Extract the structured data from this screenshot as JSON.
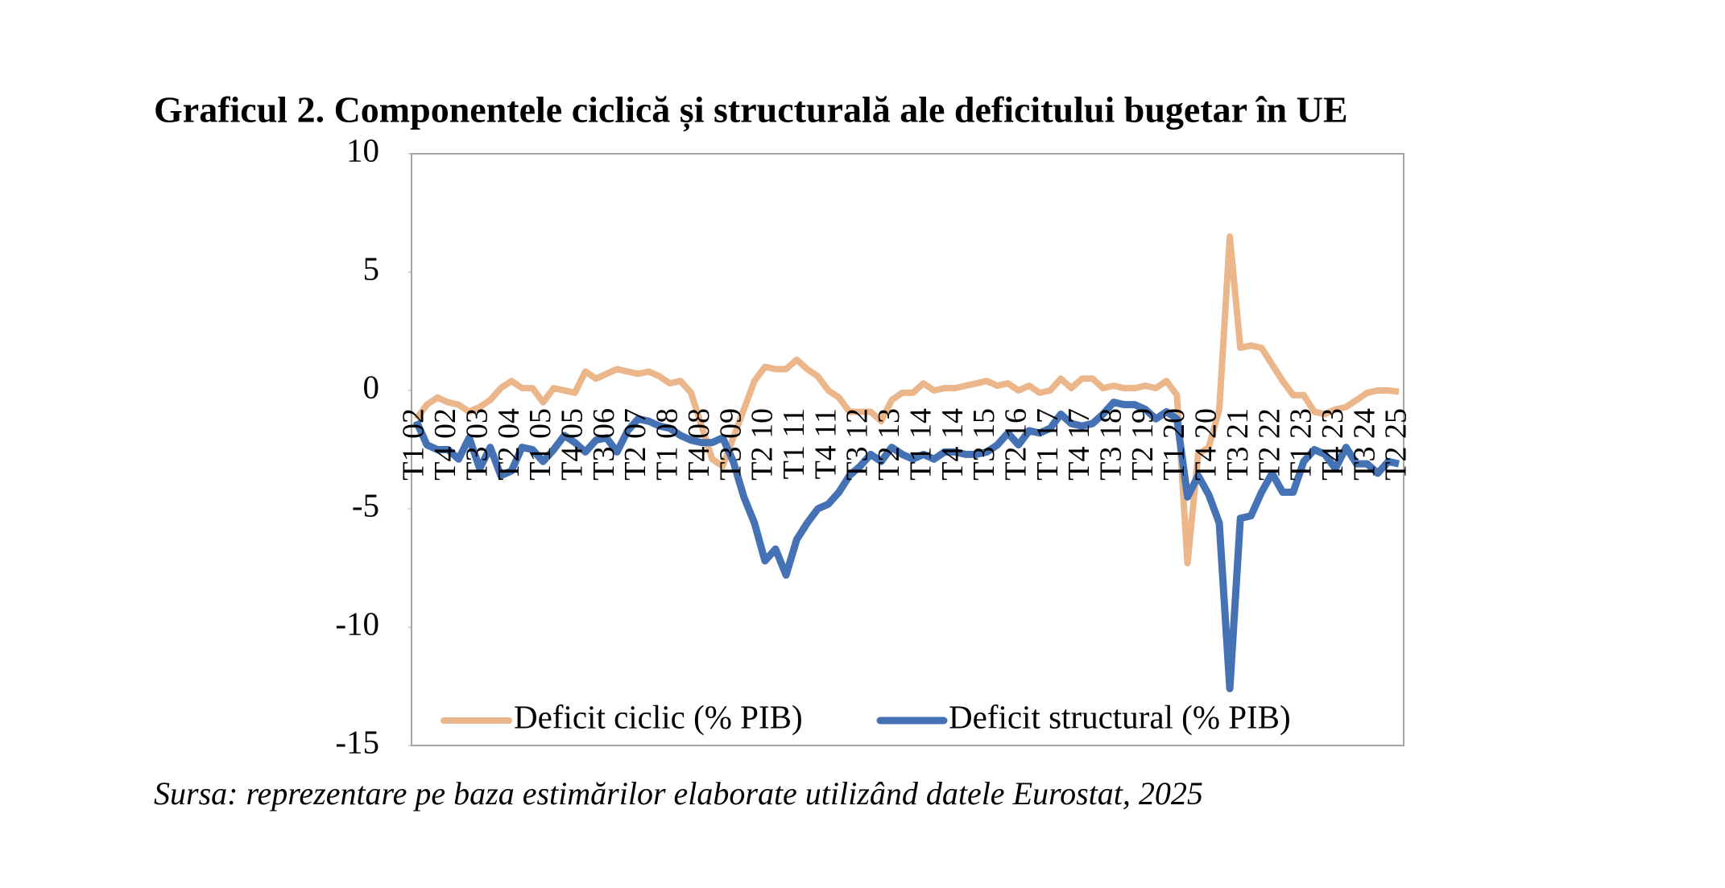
{
  "chart_data": {
    "type": "line",
    "title": "Graficul 2. Componentele ciclică și structurală ale deficitului bugetar în UE",
    "source": "Sursa: reprezentare pe baza estimărilor elaborate utilizând datele Eurostat, 2025",
    "categories": [
      "T1 02",
      null,
      null,
      "T4 02",
      null,
      null,
      "T3 03",
      null,
      null,
      "T2 04",
      null,
      null,
      "T1 05",
      null,
      null,
      "T4 05",
      null,
      null,
      "T3 06",
      null,
      null,
      "T2 07",
      null,
      null,
      "T1 08",
      null,
      null,
      "T4 08",
      null,
      null,
      "T3 09",
      null,
      null,
      "T2 10",
      null,
      null,
      "T1 11",
      null,
      null,
      "T4 11",
      null,
      null,
      "T3 12",
      null,
      null,
      "T2 13",
      null,
      null,
      "T1 14",
      null,
      null,
      "T4 14",
      null,
      null,
      "T3 15",
      null,
      null,
      "T2 16",
      null,
      null,
      "T1 17",
      null,
      null,
      "T4 17",
      null,
      null,
      "T3 18",
      null,
      null,
      "T2 19",
      null,
      null,
      "T1 20",
      null,
      null,
      "T4 20",
      null,
      null,
      "T3 21",
      null,
      null,
      "T2 22",
      null,
      null,
      "T1 23",
      null,
      null,
      "T4 23",
      null,
      null,
      "T3 24",
      null,
      null,
      "T2 25"
    ],
    "series": [
      {
        "name": "Deficit ciclic (% PIB)",
        "color": "#ecb68b",
        "values": [
          -1.2,
          -0.6,
          -0.3,
          -0.5,
          -0.6,
          -0.9,
          -0.7,
          -0.4,
          0.1,
          0.4,
          0.1,
          0.1,
          -0.5,
          0.1,
          0.0,
          -0.1,
          0.8,
          0.5,
          0.7,
          0.9,
          0.8,
          0.7,
          0.8,
          0.6,
          0.3,
          0.4,
          -0.1,
          -1.5,
          -2.9,
          -3.2,
          -2.0,
          -0.8,
          0.4,
          1.0,
          0.9,
          0.9,
          1.3,
          0.9,
          0.6,
          0.0,
          -0.3,
          -0.9,
          -0.9,
          -0.9,
          -1.3,
          -0.4,
          -0.1,
          -0.1,
          0.3,
          0.0,
          0.1,
          0.1,
          0.2,
          0.3,
          0.4,
          0.2,
          0.3,
          0.0,
          0.2,
          -0.1,
          0.0,
          0.5,
          0.1,
          0.5,
          0.5,
          0.1,
          0.2,
          0.1,
          0.1,
          0.2,
          0.1,
          0.4,
          -0.2,
          -7.3,
          -2.7,
          -2.4,
          -0.8,
          6.5,
          1.8,
          1.9,
          1.8,
          1.1,
          0.4,
          -0.2,
          -0.2,
          -0.9,
          -1.0,
          -0.8,
          -0.7,
          -0.4,
          -0.1,
          0.0,
          0.0,
          -0.05
        ]
      },
      {
        "name": "Deficit structural (% PIB)",
        "color": "#4472b4",
        "values": [
          -1.3,
          -2.3,
          -2.5,
          -2.5,
          -2.9,
          -2.0,
          -3.3,
          -2.4,
          -3.6,
          -3.4,
          -2.4,
          -2.5,
          -3.0,
          -2.5,
          -1.9,
          -2.2,
          -2.6,
          -2.1,
          -2.0,
          -2.6,
          -1.7,
          -1.2,
          -1.3,
          -1.5,
          -1.6,
          -1.9,
          -2.1,
          -2.2,
          -2.2,
          -2.0,
          -3.0,
          -4.5,
          -5.6,
          -7.2,
          -6.7,
          -7.8,
          -6.3,
          -5.6,
          -5.0,
          -4.8,
          -4.3,
          -3.6,
          -3.2,
          -2.7,
          -3.0,
          -2.4,
          -2.7,
          -2.9,
          -2.7,
          -2.9,
          -2.6,
          -2.6,
          -2.7,
          -2.7,
          -2.6,
          -2.3,
          -1.8,
          -2.3,
          -1.7,
          -1.8,
          -1.6,
          -1.0,
          -1.4,
          -1.5,
          -1.4,
          -1.0,
          -0.5,
          -0.6,
          -0.6,
          -0.8,
          -1.2,
          -0.9,
          -1.2,
          -4.5,
          -3.6,
          -4.4,
          -5.6,
          -12.6,
          -5.4,
          -5.3,
          -4.3,
          -3.5,
          -4.3,
          -4.3,
          -3.0,
          -2.5,
          -2.7,
          -3.3,
          -2.4,
          -3.1,
          -3.1,
          -3.5,
          -3.0,
          -3.1
        ]
      }
    ],
    "ylim": [
      -15,
      10
    ],
    "yticks": [
      -15,
      -10,
      -5,
      0,
      5,
      10
    ],
    "legend": "bottom"
  }
}
